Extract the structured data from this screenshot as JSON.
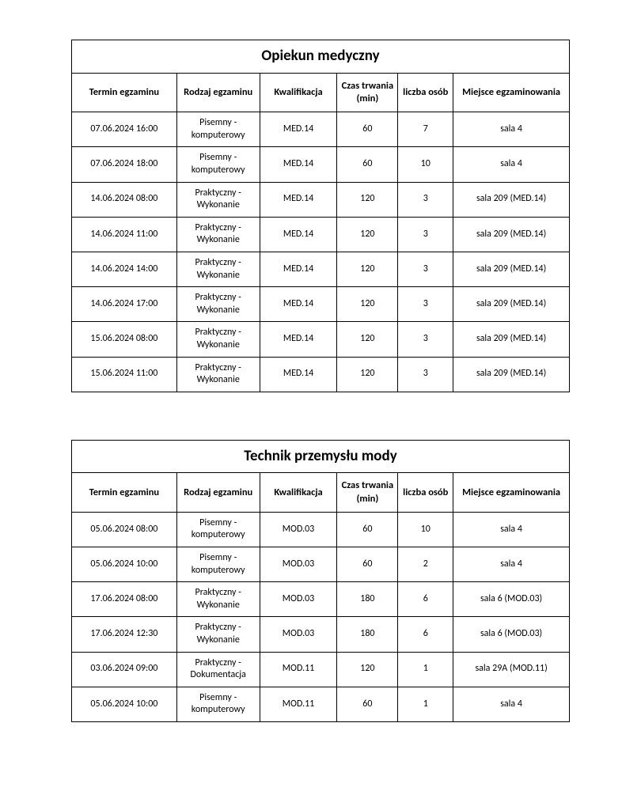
{
  "columns": [
    "Termin egzaminu",
    "Rodzaj egzaminu",
    "Kwalifikacja",
    "Czas trwania (min)",
    "liczba osób",
    "Miejsce egzaminowania"
  ],
  "tables": [
    {
      "title": "Opiekun medyczny",
      "rows": [
        [
          "07.06.2024 16:00",
          "Pisemny - komputerowy",
          "MED.14",
          "60",
          "7",
          "sala 4"
        ],
        [
          "07.06.2024 18:00",
          "Pisemny - komputerowy",
          "MED.14",
          "60",
          "10",
          "sala 4"
        ],
        [
          "14.06.2024 08:00",
          "Praktyczny - Wykonanie",
          "MED.14",
          "120",
          "3",
          "sala 209 (MED.14)"
        ],
        [
          "14.06.2024 11:00",
          "Praktyczny - Wykonanie",
          "MED.14",
          "120",
          "3",
          "sala 209 (MED.14)"
        ],
        [
          "14.06.2024 14:00",
          "Praktyczny - Wykonanie",
          "MED.14",
          "120",
          "3",
          "sala 209 (MED.14)"
        ],
        [
          "14.06.2024 17:00",
          "Praktyczny - Wykonanie",
          "MED.14",
          "120",
          "3",
          "sala 209 (MED.14)"
        ],
        [
          "15.06.2024 08:00",
          "Praktyczny - Wykonanie",
          "MED.14",
          "120",
          "3",
          "sala 209 (MED.14)"
        ],
        [
          "15.06.2024 11:00",
          "Praktyczny - Wykonanie",
          "MED.14",
          "120",
          "3",
          "sala 209 (MED.14)"
        ]
      ]
    },
    {
      "title": "Technik przemysłu mody",
      "rows": [
        [
          "05.06.2024 08:00",
          "Pisemny - komputerowy",
          "MOD.03",
          "60",
          "10",
          "sala 4"
        ],
        [
          "05.06.2024 10:00",
          "Pisemny - komputerowy",
          "MOD.03",
          "60",
          "2",
          "sala 4"
        ],
        [
          "17.06.2024 08:00",
          "Praktyczny - Wykonanie",
          "MOD.03",
          "180",
          "6",
          "sala 6 (MOD.03)"
        ],
        [
          "17.06.2024 12:30",
          "Praktyczny - Wykonanie",
          "MOD.03",
          "180",
          "6",
          "sala 6 (MOD.03)"
        ],
        [
          "03.06.2024 09:00",
          "Praktyczny - Dokumentacja",
          "MOD.11",
          "120",
          "1",
          "sala 29A (MOD.11)"
        ],
        [
          "05.06.2024 10:00",
          "Pisemny - komputerowy",
          "MOD.11",
          "60",
          "1",
          "sala 4"
        ]
      ]
    }
  ]
}
